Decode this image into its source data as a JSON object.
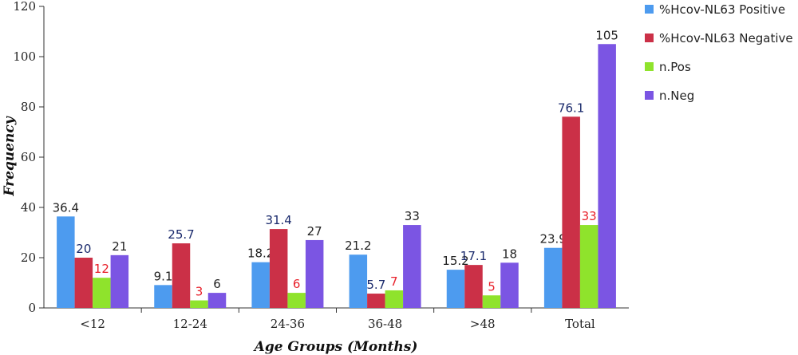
{
  "chart_data": {
    "type": "bar",
    "title": "",
    "xlabel": "Age Groups (Months)",
    "ylabel": "Frequency",
    "ylim": [
      0,
      120
    ],
    "yticks": [
      0,
      20,
      40,
      60,
      80,
      100,
      120
    ],
    "grid": false,
    "legend_position": "right",
    "categories": [
      "<12",
      "12-24",
      "24-36",
      "36-48",
      ">48",
      "Total"
    ],
    "series": [
      {
        "name": "%Hcov-NL63 Positive",
        "color": "#4d9bef",
        "values": [
          36.4,
          9.1,
          18.2,
          21.2,
          15.2,
          23.9
        ],
        "labels": [
          "36.4",
          "9.1",
          "18.2",
          "21.2",
          "15.2",
          "23.9"
        ],
        "label_color": "#222222"
      },
      {
        "name": "%Hcov-NL63 Negative",
        "color": "#cb3047",
        "values": [
          20,
          25.7,
          31.4,
          5.7,
          17.1,
          76.1
        ],
        "labels": [
          "20",
          "25.7",
          "31.4",
          "5.7",
          "17.1",
          "76.1"
        ],
        "label_color": "#1a2a6c"
      },
      {
        "name": "n.Pos",
        "color": "#8fe32c",
        "values": [
          12,
          3,
          6,
          7,
          5,
          33
        ],
        "labels": [
          "12",
          "3",
          "6",
          "7",
          "5",
          "33"
        ],
        "label_color": "#e8202a"
      },
      {
        "name": "n.Neg",
        "color": "#7b55e3",
        "values": [
          21,
          6,
          27,
          33,
          18,
          105
        ],
        "labels": [
          "21",
          "6",
          "27",
          "33",
          "18",
          "105"
        ],
        "label_color": "#222222"
      }
    ]
  }
}
